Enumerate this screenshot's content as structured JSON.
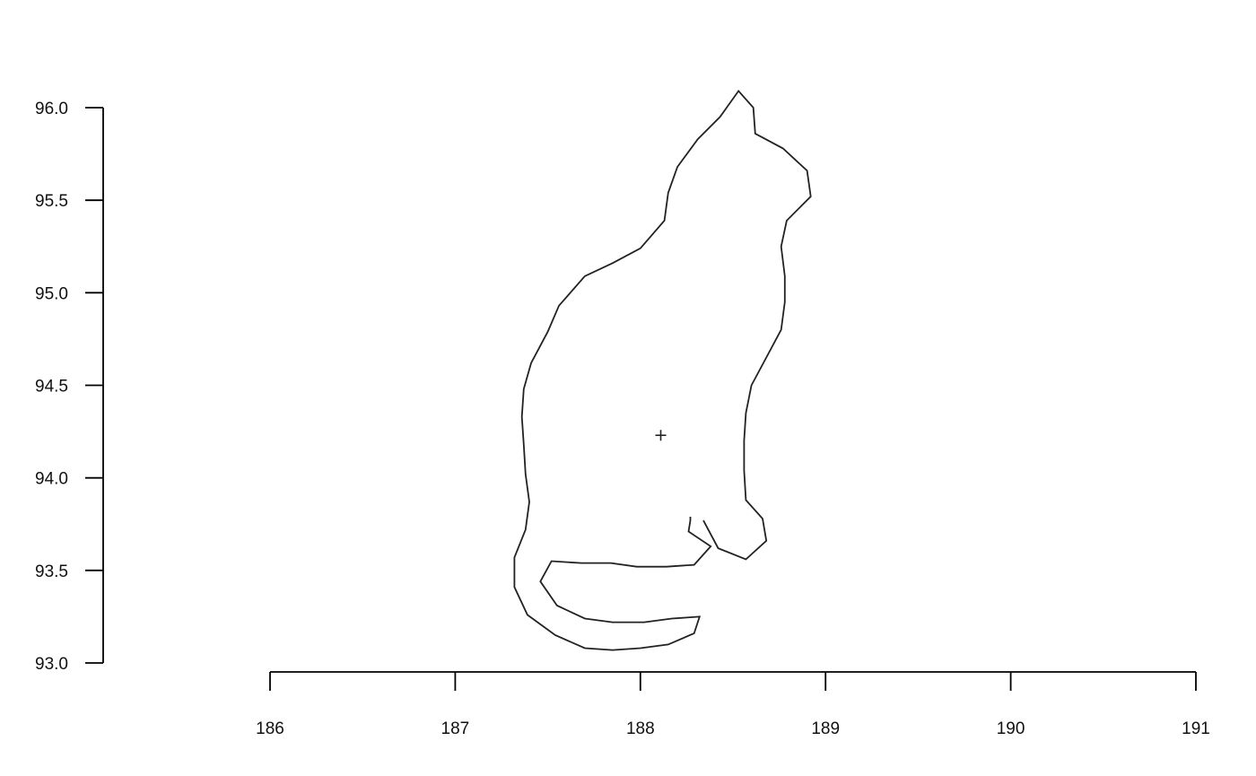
{
  "chart_data": {
    "type": "line",
    "title": "",
    "xlabel": "",
    "ylabel": "",
    "xlim": [
      186,
      191
    ],
    "ylim": [
      93.0,
      96.0
    ],
    "x_ticks": [
      186,
      187,
      188,
      189,
      190,
      191
    ],
    "x_tick_labels": [
      "186",
      "187",
      "188",
      "189",
      "190",
      "191"
    ],
    "y_ticks": [
      93.0,
      93.5,
      94.0,
      94.5,
      95.0,
      95.5,
      96.0
    ],
    "y_tick_labels": [
      "93.0",
      "93.5",
      "94.0",
      "94.5",
      "95.0",
      "95.5",
      "96.0"
    ],
    "grid": false,
    "series": [
      {
        "color": "#222222",
        "points": [
          [
            188.27,
            93.79
          ],
          [
            188.27,
            93.77
          ],
          [
            188.26,
            93.71
          ],
          [
            188.38,
            93.63
          ],
          [
            188.29,
            93.53
          ],
          [
            188.14,
            93.52
          ],
          [
            187.98,
            93.52
          ],
          [
            187.84,
            93.54
          ],
          [
            187.68,
            93.54
          ],
          [
            187.52,
            93.55
          ],
          [
            187.46,
            93.44
          ],
          [
            187.55,
            93.31
          ],
          [
            187.7,
            93.24
          ],
          [
            187.85,
            93.22
          ],
          [
            188.02,
            93.22
          ],
          [
            188.17,
            93.24
          ],
          [
            188.32,
            93.25
          ],
          [
            188.29,
            93.16
          ],
          [
            188.15,
            93.1
          ],
          [
            188.0,
            93.08
          ],
          [
            187.85,
            93.07
          ],
          [
            187.7,
            93.08
          ],
          [
            187.54,
            93.15
          ],
          [
            187.39,
            93.26
          ],
          [
            187.32,
            93.41
          ],
          [
            187.32,
            93.57
          ],
          [
            187.38,
            93.72
          ],
          [
            187.4,
            93.87
          ],
          [
            187.38,
            94.02
          ],
          [
            187.37,
            94.18
          ],
          [
            187.36,
            94.33
          ],
          [
            187.37,
            94.48
          ],
          [
            187.41,
            94.62
          ],
          [
            187.5,
            94.79
          ],
          [
            187.56,
            94.93
          ],
          [
            187.7,
            95.09
          ],
          [
            187.85,
            95.16
          ],
          [
            188.0,
            95.24
          ],
          [
            188.13,
            95.39
          ],
          [
            188.15,
            95.54
          ],
          [
            188.2,
            95.68
          ],
          [
            188.31,
            95.83
          ],
          [
            188.43,
            95.95
          ],
          [
            188.53,
            96.09
          ],
          [
            188.61,
            96.0
          ],
          [
            188.62,
            95.86
          ],
          [
            188.77,
            95.78
          ],
          [
            188.9,
            95.66
          ],
          [
            188.92,
            95.52
          ],
          [
            188.79,
            95.39
          ],
          [
            188.76,
            95.25
          ],
          [
            188.78,
            95.09
          ],
          [
            188.78,
            94.95
          ],
          [
            188.76,
            94.8
          ],
          [
            188.68,
            94.65
          ],
          [
            188.6,
            94.5
          ],
          [
            188.57,
            94.35
          ],
          [
            188.56,
            94.2
          ],
          [
            188.56,
            94.04
          ],
          [
            188.57,
            93.88
          ],
          [
            188.66,
            93.78
          ],
          [
            188.68,
            93.66
          ],
          [
            188.57,
            93.56
          ],
          [
            188.42,
            93.62
          ],
          [
            188.34,
            93.77
          ]
        ]
      }
    ],
    "markers": [
      {
        "symbol": "+",
        "x": 188.11,
        "y": 94.23
      }
    ]
  }
}
